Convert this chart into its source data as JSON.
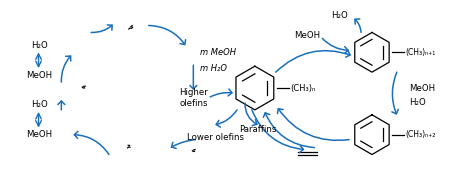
{
  "bg_color": "#ffffff",
  "arrow_color": "#1a6fba",
  "text_color": "#000000",
  "figsize": [
    4.74,
    1.82
  ],
  "dpi": 100,
  "labels": {
    "mMeOH": "m MeOH",
    "mH2O": "m H₂O",
    "higher_olefins": "Higher\nolefins",
    "lower_olefins": "Lower olefins",
    "paraffins": "Paraffins",
    "H2O_tl": "H₂O",
    "MeOH_l": "MeOH",
    "H2O_bl": "H₂O",
    "MeOH_bl": "MeOH",
    "H2O_tr": "H₂O",
    "MeOH_tr": "MeOH",
    "MeOH_r": "MeOH",
    "H2O_r": "H₂O",
    "CH3n": "(CH₃)ₙ",
    "CH3n1": "(CH₃)ₙ₊₁",
    "CH3n2": "(CH₃)ₙ₊₂"
  }
}
